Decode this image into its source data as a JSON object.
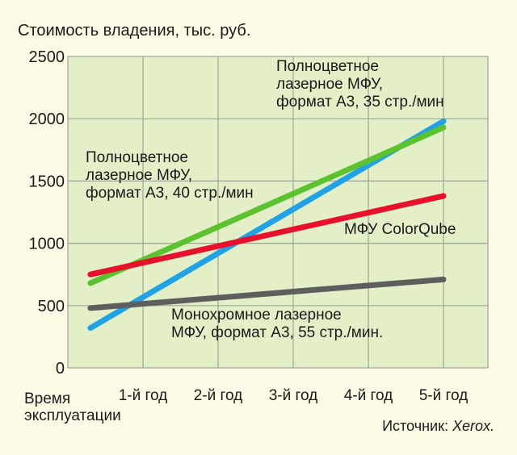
{
  "chart_data": {
    "type": "line",
    "title": "Стоимость владения, тыс. руб.",
    "xlabel": [
      "Время",
      "эксплуатации"
    ],
    "ylabel": "",
    "categories": [
      "",
      "1-й год",
      "2-й год",
      "3-й год",
      "4-й год",
      "5-й год"
    ],
    "x": [
      0.3,
      5
    ],
    "ylim": [
      0,
      2500
    ],
    "yticks": [
      0,
      500,
      1000,
      1500,
      2000,
      2500
    ],
    "grid": true,
    "background_color": "#fdfce6",
    "plot_background": "#e3efc7",
    "grid_color": "#9aa79a",
    "series": [
      {
        "name": [
          "Полноцветное",
          "лазерное МФУ,",
          "формат А3, 35 стр./мин"
        ],
        "color": "#1fa3e6",
        "values": [
          320,
          1980
        ]
      },
      {
        "name": [
          "Полноцветное",
          "лазерное МФУ,",
          "формат А3, 40 стр./мин"
        ],
        "color": "#5cc22e",
        "values": [
          680,
          1930
        ]
      },
      {
        "name": [
          "МФУ ColorQube"
        ],
        "color": "#e8102a",
        "values": [
          750,
          1380
        ]
      },
      {
        "name": [
          "Монохромное лазерное",
          "МФУ, формат А3, 55 стр./мин."
        ],
        "color": "#5e5e5e",
        "values": [
          480,
          710
        ]
      }
    ],
    "source_prefix": "Источник: ",
    "source_name": "Xerox."
  }
}
